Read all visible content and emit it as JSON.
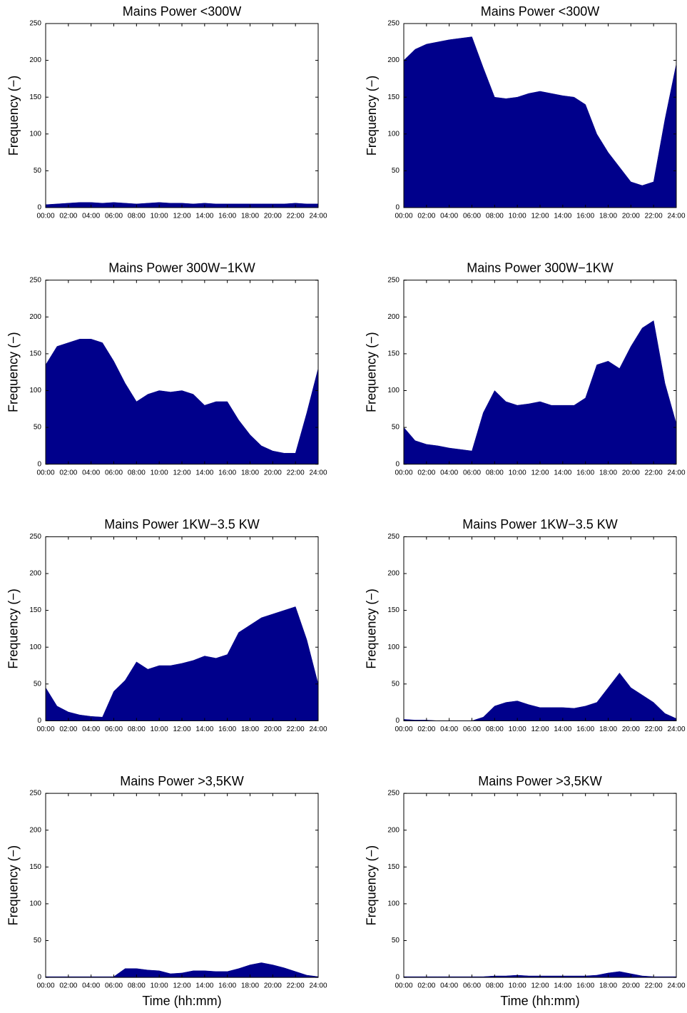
{
  "chart_data": [
    {
      "type": "area",
      "title": "Mains Power <300W",
      "ylabel": "Frequency (−)",
      "color": "#00008b",
      "x": [
        0,
        1,
        2,
        3,
        4,
        5,
        6,
        7,
        8,
        9,
        10,
        11,
        12,
        13,
        14,
        15,
        16,
        17,
        18,
        19,
        20,
        21,
        22,
        23,
        24
      ],
      "values": [
        4,
        5,
        6,
        7,
        7,
        6,
        7,
        6,
        5,
        6,
        7,
        6,
        6,
        5,
        6,
        5,
        5,
        5,
        5,
        5,
        5,
        5,
        6,
        5,
        5
      ],
      "xlim": [
        0,
        24
      ],
      "ylim": [
        0,
        250
      ],
      "yticks": [
        0,
        50,
        100,
        150,
        200,
        250
      ],
      "xticks": [
        {
          "value": 0,
          "label": "00:00"
        },
        {
          "value": 2,
          "label": "02:00"
        },
        {
          "value": 4,
          "label": "04:00"
        },
        {
          "value": 6,
          "label": "06:00"
        },
        {
          "value": 8,
          "label": "08:00"
        },
        {
          "value": 10,
          "label": "10:00"
        },
        {
          "value": 12,
          "label": "12:00"
        },
        {
          "value": 14,
          "label": "14:00"
        },
        {
          "value": 16,
          "label": "16:00"
        },
        {
          "value": 18,
          "label": "18:00"
        },
        {
          "value": 20,
          "label": "20:00"
        },
        {
          "value": 22,
          "label": "22:00"
        },
        {
          "value": 24,
          "label": "24:00"
        }
      ]
    },
    {
      "type": "area",
      "title": "Mains Power <300W",
      "ylabel": "Frequency (−)",
      "color": "#00008b",
      "x": [
        0,
        1,
        2,
        3,
        4,
        5,
        6,
        7,
        8,
        9,
        10,
        11,
        12,
        13,
        14,
        15,
        16,
        17,
        18,
        19,
        20,
        21,
        22,
        23,
        24
      ],
      "values": [
        200,
        215,
        222,
        225,
        228,
        230,
        232,
        190,
        150,
        148,
        150,
        155,
        158,
        155,
        152,
        150,
        140,
        100,
        75,
        55,
        35,
        30,
        35,
        120,
        195
      ],
      "xlim": [
        0,
        24
      ],
      "ylim": [
        0,
        250
      ],
      "yticks": [
        0,
        50,
        100,
        150,
        200,
        250
      ],
      "xticks": [
        {
          "value": 0,
          "label": "00:00"
        },
        {
          "value": 2,
          "label": "02:00"
        },
        {
          "value": 4,
          "label": "04:00"
        },
        {
          "value": 6,
          "label": "06:00"
        },
        {
          "value": 8,
          "label": "08:00"
        },
        {
          "value": 10,
          "label": "10:00"
        },
        {
          "value": 12,
          "label": "12:00"
        },
        {
          "value": 14,
          "label": "14:00"
        },
        {
          "value": 16,
          "label": "16:00"
        },
        {
          "value": 18,
          "label": "18:00"
        },
        {
          "value": 20,
          "label": "20:00"
        },
        {
          "value": 22,
          "label": "22:00"
        },
        {
          "value": 24,
          "label": "24:00"
        }
      ]
    },
    {
      "type": "area",
      "title": "Mains Power 300W−1KW",
      "ylabel": "Frequency (−)",
      "color": "#00008b",
      "x": [
        0,
        1,
        2,
        3,
        4,
        5,
        6,
        7,
        8,
        9,
        10,
        11,
        12,
        13,
        14,
        15,
        16,
        17,
        18,
        19,
        20,
        21,
        22,
        23,
        24
      ],
      "values": [
        135,
        160,
        165,
        170,
        170,
        165,
        140,
        110,
        85,
        95,
        100,
        98,
        100,
        95,
        80,
        85,
        85,
        60,
        40,
        25,
        18,
        15,
        15,
        70,
        130
      ],
      "xlim": [
        0,
        24
      ],
      "ylim": [
        0,
        250
      ],
      "yticks": [
        0,
        50,
        100,
        150,
        200,
        250
      ],
      "xticks": [
        {
          "value": 0,
          "label": "00:00"
        },
        {
          "value": 2,
          "label": "02:00"
        },
        {
          "value": 4,
          "label": "04:00"
        },
        {
          "value": 6,
          "label": "06:00"
        },
        {
          "value": 8,
          "label": "08:00"
        },
        {
          "value": 10,
          "label": "10:00"
        },
        {
          "value": 12,
          "label": "12:00"
        },
        {
          "value": 14,
          "label": "14:00"
        },
        {
          "value": 16,
          "label": "16:00"
        },
        {
          "value": 18,
          "label": "18:00"
        },
        {
          "value": 20,
          "label": "20:00"
        },
        {
          "value": 22,
          "label": "22:00"
        },
        {
          "value": 24,
          "label": "24:00"
        }
      ]
    },
    {
      "type": "area",
      "title": "Mains Power 300W−1KW",
      "ylabel": "Frequency (−)",
      "color": "#00008b",
      "x": [
        0,
        1,
        2,
        3,
        4,
        5,
        6,
        7,
        8,
        9,
        10,
        11,
        12,
        13,
        14,
        15,
        16,
        17,
        18,
        19,
        20,
        21,
        22,
        23,
        24
      ],
      "values": [
        50,
        32,
        27,
        25,
        22,
        20,
        18,
        70,
        100,
        85,
        80,
        82,
        85,
        80,
        80,
        80,
        90,
        135,
        140,
        130,
        160,
        185,
        195,
        110,
        55
      ],
      "xlim": [
        0,
        24
      ],
      "ylim": [
        0,
        250
      ],
      "yticks": [
        0,
        50,
        100,
        150,
        200,
        250
      ],
      "xticks": [
        {
          "value": 0,
          "label": "00:00"
        },
        {
          "value": 2,
          "label": "02:00"
        },
        {
          "value": 4,
          "label": "04:00"
        },
        {
          "value": 6,
          "label": "06:00"
        },
        {
          "value": 8,
          "label": "08:00"
        },
        {
          "value": 10,
          "label": "10:00"
        },
        {
          "value": 12,
          "label": "12:00"
        },
        {
          "value": 14,
          "label": "14:00"
        },
        {
          "value": 16,
          "label": "16:00"
        },
        {
          "value": 18,
          "label": "18:00"
        },
        {
          "value": 20,
          "label": "20:00"
        },
        {
          "value": 22,
          "label": "22:00"
        },
        {
          "value": 24,
          "label": "24:00"
        }
      ]
    },
    {
      "type": "area",
      "title": "Mains Power 1KW−3.5 KW",
      "ylabel": "Frequency (−)",
      "color": "#00008b",
      "x": [
        0,
        1,
        2,
        3,
        4,
        5,
        6,
        7,
        8,
        9,
        10,
        11,
        12,
        13,
        14,
        15,
        16,
        17,
        18,
        19,
        20,
        21,
        22,
        23,
        24
      ],
      "values": [
        45,
        20,
        12,
        8,
        6,
        5,
        40,
        55,
        80,
        70,
        75,
        75,
        78,
        82,
        88,
        85,
        90,
        120,
        130,
        140,
        145,
        150,
        155,
        110,
        50
      ],
      "xlim": [
        0,
        24
      ],
      "ylim": [
        0,
        250
      ],
      "yticks": [
        0,
        50,
        100,
        150,
        200,
        250
      ],
      "xticks": [
        {
          "value": 0,
          "label": "00:00"
        },
        {
          "value": 2,
          "label": "02:00"
        },
        {
          "value": 4,
          "label": "04:00"
        },
        {
          "value": 6,
          "label": "06:00"
        },
        {
          "value": 8,
          "label": "08:00"
        },
        {
          "value": 10,
          "label": "10:00"
        },
        {
          "value": 12,
          "label": "12:00"
        },
        {
          "value": 14,
          "label": "14:00"
        },
        {
          "value": 16,
          "label": "16:00"
        },
        {
          "value": 18,
          "label": "18:00"
        },
        {
          "value": 20,
          "label": "20:00"
        },
        {
          "value": 22,
          "label": "22:00"
        },
        {
          "value": 24,
          "label": "24:00"
        }
      ]
    },
    {
      "type": "area",
      "title": "Mains Power 1KW−3.5 KW",
      "ylabel": "Frequency (−)",
      "color": "#00008b",
      "x": [
        0,
        1,
        2,
        3,
        4,
        5,
        6,
        7,
        8,
        9,
        10,
        11,
        12,
        13,
        14,
        15,
        16,
        17,
        18,
        19,
        20,
        21,
        22,
        23,
        24
      ],
      "values": [
        2,
        1,
        1,
        0,
        0,
        0,
        0,
        5,
        20,
        25,
        27,
        22,
        18,
        18,
        18,
        17,
        20,
        25,
        45,
        65,
        45,
        35,
        25,
        10,
        3
      ],
      "xlim": [
        0,
        24
      ],
      "ylim": [
        0,
        250
      ],
      "yticks": [
        0,
        50,
        100,
        150,
        200,
        250
      ],
      "xticks": [
        {
          "value": 0,
          "label": "00:00"
        },
        {
          "value": 2,
          "label": "02:00"
        },
        {
          "value": 4,
          "label": "04:00"
        },
        {
          "value": 6,
          "label": "06:00"
        },
        {
          "value": 8,
          "label": "08:00"
        },
        {
          "value": 10,
          "label": "10:00"
        },
        {
          "value": 12,
          "label": "12:00"
        },
        {
          "value": 14,
          "label": "14:00"
        },
        {
          "value": 16,
          "label": "16:00"
        },
        {
          "value": 18,
          "label": "18:00"
        },
        {
          "value": 20,
          "label": "20:00"
        },
        {
          "value": 22,
          "label": "22:00"
        },
        {
          "value": 24,
          "label": "24:00"
        }
      ]
    },
    {
      "type": "area",
      "title": "Mains Power >3,5KW",
      "ylabel": "Frequency (−)",
      "xlabel": "Time (hh:mm)",
      "color": "#00008b",
      "x": [
        0,
        1,
        2,
        3,
        4,
        5,
        6,
        7,
        8,
        9,
        10,
        11,
        12,
        13,
        14,
        15,
        16,
        17,
        18,
        19,
        20,
        21,
        22,
        23,
        24
      ],
      "values": [
        1,
        1,
        1,
        1,
        1,
        1,
        1,
        12,
        12,
        10,
        9,
        5,
        6,
        9,
        9,
        8,
        8,
        12,
        17,
        20,
        17,
        13,
        8,
        3,
        1
      ],
      "xlim": [
        0,
        24
      ],
      "ylim": [
        0,
        250
      ],
      "yticks": [
        0,
        50,
        100,
        150,
        200,
        250
      ],
      "xticks": [
        {
          "value": 0,
          "label": "00:00"
        },
        {
          "value": 2,
          "label": "02:00"
        },
        {
          "value": 4,
          "label": "04:00"
        },
        {
          "value": 6,
          "label": "06:00"
        },
        {
          "value": 8,
          "label": "08:00"
        },
        {
          "value": 10,
          "label": "10:00"
        },
        {
          "value": 12,
          "label": "12:00"
        },
        {
          "value": 14,
          "label": "14:00"
        },
        {
          "value": 16,
          "label": "16:00"
        },
        {
          "value": 18,
          "label": "18:00"
        },
        {
          "value": 20,
          "label": "20:00"
        },
        {
          "value": 22,
          "label": "22:00"
        },
        {
          "value": 24,
          "label": "24:00"
        }
      ]
    },
    {
      "type": "area",
      "title": "Mains Power >3,5KW",
      "ylabel": "Frequency (−)",
      "xlabel": "Time (hh:mm)",
      "color": "#00008b",
      "x": [
        0,
        1,
        2,
        3,
        4,
        5,
        6,
        7,
        8,
        9,
        10,
        11,
        12,
        13,
        14,
        15,
        16,
        17,
        18,
        19,
        20,
        21,
        22,
        23,
        24
      ],
      "values": [
        1,
        1,
        1,
        1,
        1,
        1,
        1,
        1,
        2,
        2,
        3,
        2,
        2,
        2,
        2,
        2,
        2,
        3,
        6,
        8,
        5,
        2,
        1,
        1,
        1
      ],
      "xlim": [
        0,
        24
      ],
      "ylim": [
        0,
        250
      ],
      "yticks": [
        0,
        50,
        100,
        150,
        200,
        250
      ],
      "xticks": [
        {
          "value": 0,
          "label": "00:00"
        },
        {
          "value": 2,
          "label": "02:00"
        },
        {
          "value": 4,
          "label": "04:00"
        },
        {
          "value": 6,
          "label": "06:00"
        },
        {
          "value": 8,
          "label": "08:00"
        },
        {
          "value": 10,
          "label": "10:00"
        },
        {
          "value": 12,
          "label": "12:00"
        },
        {
          "value": 14,
          "label": "14:00"
        },
        {
          "value": 16,
          "label": "16:00"
        },
        {
          "value": 18,
          "label": "18:00"
        },
        {
          "value": 20,
          "label": "20:00"
        },
        {
          "value": 22,
          "label": "22:00"
        },
        {
          "value": 24,
          "label": "24:00"
        }
      ]
    }
  ]
}
